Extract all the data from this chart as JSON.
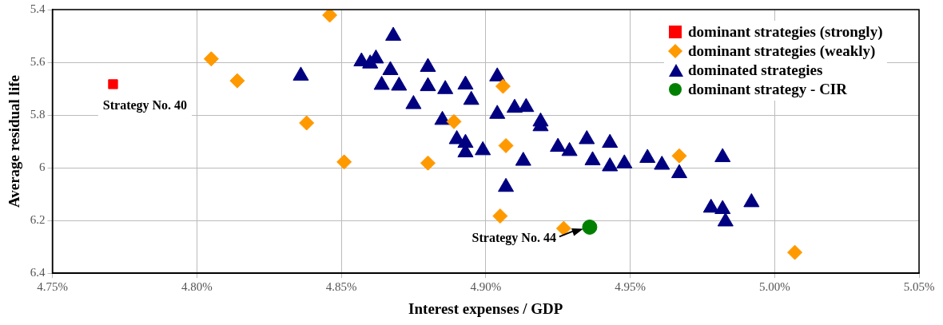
{
  "chart_data": {
    "type": "scatter",
    "xlabel": "Interest expenses / GDP",
    "ylabel": "Average residual life",
    "xlim": [
      4.75,
      5.05
    ],
    "xticks": [
      {
        "value": 4.75,
        "label": "4.75%"
      },
      {
        "value": 4.8,
        "label": "4.80%"
      },
      {
        "value": 4.85,
        "label": "4.85%"
      },
      {
        "value": 4.9,
        "label": "4.90%"
      },
      {
        "value": 4.95,
        "label": "4.95%"
      },
      {
        "value": 5.0,
        "label": "5.00%"
      },
      {
        "value": 5.05,
        "label": "5.05%"
      }
    ],
    "ylim": [
      6.4,
      5.4
    ],
    "yticks": [
      5.4,
      5.6,
      5.8,
      6,
      6.2,
      6.4
    ],
    "grid": true,
    "legend": "top right",
    "series": [
      {
        "name": "dominant strategies (strongly)",
        "color": "#ff0000",
        "marker": "square",
        "x": [
          4.771
        ],
        "values": [
          5.683
        ]
      },
      {
        "name": "dominant strategies (weakly)",
        "color": "#ff9900",
        "marker": "diamond",
        "x": [
          4.805,
          4.814,
          4.846,
          4.838,
          4.851,
          4.906,
          4.889,
          4.907,
          4.88,
          4.905,
          4.927,
          4.967,
          5.007
        ],
        "values": [
          5.587,
          5.67,
          5.421,
          5.83,
          5.978,
          5.691,
          5.825,
          5.916,
          5.982,
          6.183,
          6.23,
          5.955,
          6.321
        ]
      },
      {
        "name": "dominated strategies",
        "color": "#000080",
        "marker": "triangle",
        "x": [
          4.836,
          4.868,
          4.857,
          4.86,
          4.862,
          4.867,
          4.864,
          4.87,
          4.88,
          4.88,
          4.886,
          4.893,
          4.895,
          4.875,
          4.885,
          4.904,
          4.904,
          4.91,
          4.914,
          4.919,
          4.919,
          4.89,
          4.893,
          4.893,
          4.899,
          4.913,
          4.907,
          4.925,
          4.929,
          4.935,
          4.937,
          4.943,
          4.943,
          4.948,
          4.956,
          4.961,
          4.967,
          4.982,
          4.978,
          4.982,
          4.983,
          4.992
        ],
        "values": [
          5.651,
          5.5,
          5.597,
          5.605,
          5.586,
          5.63,
          5.686,
          5.689,
          5.618,
          5.691,
          5.702,
          5.685,
          5.743,
          5.759,
          5.819,
          5.654,
          5.796,
          5.773,
          5.77,
          5.825,
          5.843,
          5.892,
          5.906,
          5.942,
          5.934,
          5.974,
          6.073,
          5.921,
          5.937,
          5.892,
          5.972,
          5.906,
          5.995,
          5.984,
          5.963,
          5.989,
          6.021,
          5.96,
          6.152,
          6.157,
          6.204,
          6.131
        ]
      },
      {
        "name": "dominant strategy - CIR",
        "color": "#008000",
        "marker": "circle",
        "x": [
          4.936
        ],
        "values": [
          6.225
        ]
      }
    ],
    "annotations": [
      {
        "text": "Strategy No. 40",
        "x": 4.771,
        "y": 5.683
      },
      {
        "text": "Strategy No. 44",
        "x": 4.936,
        "y": 6.225
      }
    ]
  }
}
